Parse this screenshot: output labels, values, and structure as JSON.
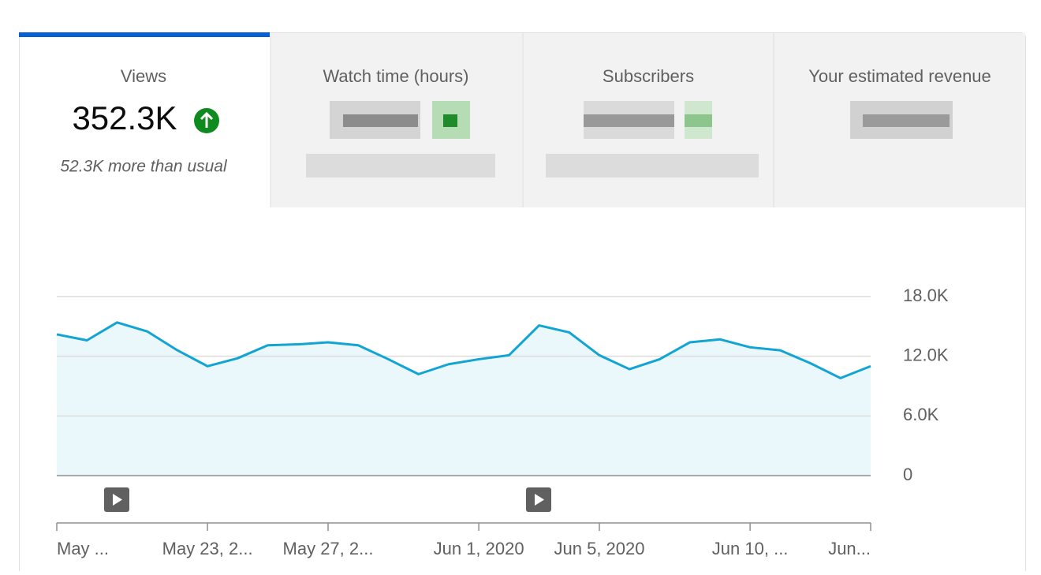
{
  "tabs": [
    {
      "title": "Views",
      "value": "352.3K",
      "note": "52.3K more than usual"
    },
    {
      "title": "Watch time (hours)"
    },
    {
      "title": "Subscribers"
    },
    {
      "title": "Your estimated revenue"
    }
  ],
  "chart_data": {
    "type": "area",
    "categories": [
      "May ...",
      null,
      null,
      null,
      null,
      "May 23, 2...",
      null,
      null,
      null,
      "May 27, 2...",
      null,
      null,
      null,
      null,
      "Jun 1, 2020",
      null,
      null,
      null,
      "Jun 5, 2020",
      null,
      null,
      null,
      null,
      "Jun 10, ...",
      null,
      null,
      null,
      "Jun..."
    ],
    "series": [
      {
        "name": "Views",
        "color": "#12a4d3",
        "values": [
          14200,
          13600,
          15400,
          14500,
          12600,
          11000,
          11800,
          13100,
          13200,
          13400,
          13100,
          11700,
          10200,
          11200,
          11700,
          12100,
          15100,
          14400,
          12100,
          10700,
          11700,
          13400,
          13700,
          12900,
          12600,
          11300,
          9800,
          11000
        ]
      }
    ],
    "ylim": [
      0,
      18000
    ],
    "yticks": [
      0,
      {
        "value": 6000,
        "label": "6.0K"
      },
      {
        "value": 12000,
        "label": "12.0K"
      },
      {
        "value": 18000,
        "label": "18.0K"
      }
    ],
    "grid": true
  }
}
